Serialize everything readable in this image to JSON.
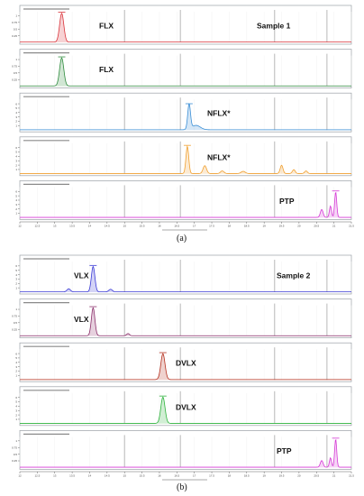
{
  "figure": {
    "caption_a": "(a)",
    "caption_b": "(b)"
  },
  "chart_data": [
    {
      "type": "line",
      "title": "",
      "sample_label": "Sample 1",
      "xlabel": "",
      "xlim": [
        12,
        21.5
      ],
      "ticks": [
        12,
        12.5,
        13,
        13.5,
        14,
        14.5,
        15,
        15.5,
        16,
        16.5,
        17,
        17.5,
        18,
        18.5,
        19,
        19.5,
        20,
        20.5,
        21,
        21.5
      ],
      "markers": [
        15,
        16.6,
        19.3,
        20.8
      ],
      "panels": [
        {
          "compound": "FLX",
          "color": "#d9333a",
          "ymax": 1.15,
          "yticks": [
            0.25,
            0.5,
            0.75,
            1
          ],
          "peaks": [
            [
              13.2,
              1.08,
              0.06
            ]
          ]
        },
        {
          "compound": "FLX",
          "color": "#2e8b3d",
          "ymax": 1.15,
          "yticks": [
            0.25,
            0.5,
            0.75,
            1
          ],
          "peaks": [
            [
              13.2,
              1.05,
              0.06
            ]
          ]
        },
        {
          "compound": "NFLX*",
          "color": "#3b8fd6",
          "ymax": 7,
          "yticks": [
            1,
            2,
            3,
            4,
            5,
            6
          ],
          "peaks": [
            [
              16.85,
              5.7,
              0.04
            ],
            [
              17.05,
              1.0,
              0.12
            ]
          ]
        },
        {
          "compound": "NFLX*",
          "color": "#f0a030",
          "ymax": 7,
          "yticks": [
            1,
            2,
            3,
            4,
            5,
            6
          ],
          "peaks": [
            [
              16.8,
              6.2,
              0.04
            ],
            [
              17.3,
              1.8,
              0.05
            ],
            [
              17.8,
              0.6,
              0.05
            ],
            [
              18.4,
              0.5,
              0.06
            ],
            [
              19.5,
              1.9,
              0.04
            ],
            [
              19.85,
              0.9,
              0.04
            ],
            [
              20.2,
              0.6,
              0.04
            ]
          ]
        },
        {
          "compound": "PTP",
          "color": "#d63ad6",
          "ymax": 7,
          "yticks": [
            1,
            2,
            3,
            4,
            5,
            6
          ],
          "peaks": [
            [
              20.65,
              1.8,
              0.04
            ],
            [
              20.9,
              2.6,
              0.03
            ],
            [
              21.05,
              5.8,
              0.03
            ]
          ]
        }
      ]
    },
    {
      "type": "line",
      "title": "",
      "sample_label": "Sample 2",
      "xlabel": "",
      "xlim": [
        12,
        21.5
      ],
      "ticks": [
        12,
        12.5,
        13,
        13.5,
        14,
        14.5,
        15,
        15.5,
        16,
        16.5,
        17,
        17.5,
        18,
        18.5,
        19,
        19.5,
        20,
        20.5,
        21,
        21.5
      ],
      "markers": [
        15,
        16.6,
        19.3,
        20.8
      ],
      "panels": [
        {
          "compound": "VLX",
          "color": "#3a3ad6",
          "ymax": 7,
          "yticks": [
            1,
            2,
            3,
            4,
            5,
            6
          ],
          "peaks": [
            [
              13.4,
              0.7,
              0.05
            ],
            [
              14.1,
              5.8,
              0.05
            ],
            [
              14.6,
              0.6,
              0.05
            ]
          ]
        },
        {
          "compound": "VLX",
          "color": "#8b2f6b",
          "ymax": 1.15,
          "yticks": [
            0.25,
            0.5,
            0.75,
            1
          ],
          "peaks": [
            [
              14.1,
              1.05,
              0.05
            ],
            [
              15.1,
              0.08,
              0.04
            ]
          ]
        },
        {
          "compound": "DVLX",
          "color": "#b5301f",
          "ymax": 7,
          "yticks": [
            1,
            2,
            3,
            4,
            5,
            6
          ],
          "peaks": [
            [
              16.1,
              5.9,
              0.06
            ]
          ]
        },
        {
          "compound": "DVLX",
          "color": "#2eb33d",
          "ymax": 7,
          "yticks": [
            1,
            2,
            3,
            4,
            5,
            6
          ],
          "peaks": [
            [
              16.1,
              6.0,
              0.06
            ]
          ]
        },
        {
          "compound": "PTP",
          "color": "#d63ad6",
          "ymax": 1.15,
          "yticks": [
            0.25,
            0.5,
            0.75,
            1
          ],
          "peaks": [
            [
              20.65,
              0.25,
              0.04
            ],
            [
              20.9,
              0.35,
              0.03
            ],
            [
              21.05,
              1.05,
              0.03
            ]
          ]
        }
      ]
    }
  ]
}
